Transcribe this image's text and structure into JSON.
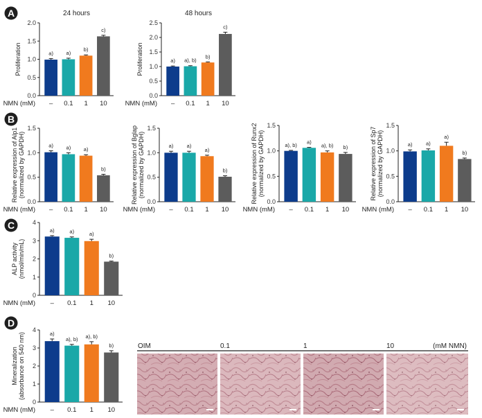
{
  "colors": {
    "bars": [
      "#0d3c8c",
      "#1aa8a8",
      "#f07a1e",
      "#5c5c5c"
    ],
    "badge": "#1f1f1f",
    "stain": "#c89aa2"
  },
  "xlabel": "NMN (mM)",
  "categories": [
    "–",
    "0.1",
    "1",
    "10"
  ],
  "panel_labels": [
    "A",
    "B",
    "C",
    "D"
  ],
  "images": {
    "labels": [
      "OIM",
      "0.1",
      "1",
      "10"
    ],
    "unit_label": "(mM NMN)"
  },
  "chart_data": [
    {
      "id": "A1",
      "type": "bar",
      "panel": "A",
      "title": "24 hours",
      "ylabel": [
        "Proliferation"
      ],
      "ylim": [
        0,
        2.0
      ],
      "yticks": [
        "0.0",
        "0.5",
        "1.0",
        "1.5",
        "2.0"
      ],
      "categories": [
        "–",
        "0.1",
        "1",
        "10"
      ],
      "values": [
        0.99,
        1.0,
        1.1,
        1.63
      ],
      "errors": [
        0.03,
        0.03,
        0.02,
        0.03
      ],
      "sig": [
        "a)",
        "a)",
        "b)",
        "c)"
      ]
    },
    {
      "id": "A2",
      "type": "bar",
      "panel": "A",
      "title": "48 hours",
      "ylabel": [
        "Proliferation"
      ],
      "ylim": [
        0,
        2.5
      ],
      "yticks": [
        "0.0",
        "0.5",
        "1.0",
        "1.5",
        "2.0",
        "2.5"
      ],
      "categories": [
        "–",
        "0.1",
        "1",
        "10"
      ],
      "values": [
        1.0,
        1.01,
        1.14,
        2.12
      ],
      "errors": [
        0.02,
        0.02,
        0.02,
        0.06
      ],
      "sig": [
        "a)",
        "a), b)",
        "b)",
        "c)"
      ]
    },
    {
      "id": "B1",
      "type": "bar",
      "panel": "B",
      "title": "",
      "ylabel": [
        "Relative expression of Alp1",
        "(normalized by GAPDH)"
      ],
      "ylim": [
        0,
        1.5
      ],
      "yticks": [
        "0.0",
        "0.5",
        "1.0",
        "1.5"
      ],
      "categories": [
        "–",
        "0.1",
        "1",
        "10"
      ],
      "values": [
        1.01,
        0.97,
        0.94,
        0.54
      ],
      "errors": [
        0.03,
        0.03,
        0.02,
        0.02
      ],
      "sig": [
        "a)",
        "a)",
        "a)",
        "b)"
      ]
    },
    {
      "id": "B2",
      "type": "bar",
      "panel": "B",
      "title": "",
      "ylabel": [
        "Relative expression of Bglap",
        "(normalized by GAPDH)"
      ],
      "ylim": [
        0,
        1.5
      ],
      "yticks": [
        "0.0",
        "0.5",
        "1.0",
        "1.5"
      ],
      "categories": [
        "–",
        "0.1",
        "1",
        "10"
      ],
      "values": [
        1.0,
        1.0,
        0.93,
        0.51
      ],
      "errors": [
        0.03,
        0.03,
        0.02,
        0.02
      ],
      "sig": [
        "a)",
        "a)",
        "a)",
        "b)"
      ]
    },
    {
      "id": "B3",
      "type": "bar",
      "panel": "B",
      "title": "",
      "ylabel": [
        "Relative expression of Runx2",
        "(normalized by GAPDH)"
      ],
      "ylim": [
        0,
        1.5
      ],
      "yticks": [
        "0.0",
        "0.5",
        "1.0",
        "1.5"
      ],
      "categories": [
        "–",
        "0.1",
        "1",
        "10"
      ],
      "values": [
        1.0,
        1.06,
        0.97,
        0.94
      ],
      "errors": [
        0.01,
        0.01,
        0.03,
        0.03
      ],
      "sig": [
        "a), b)",
        "a)",
        "a), b)",
        "b)"
      ]
    },
    {
      "id": "B4",
      "type": "bar",
      "panel": "B",
      "title": "",
      "ylabel": [
        "Relative expression of Sp7",
        "(normalized by GAPDH)"
      ],
      "ylim": [
        0,
        1.5
      ],
      "yticks": [
        "0.0",
        "0.5",
        "1.0",
        "1.5"
      ],
      "categories": [
        "–",
        "0.1",
        "1",
        "10"
      ],
      "values": [
        0.99,
        1.01,
        1.1,
        0.84
      ],
      "errors": [
        0.03,
        0.03,
        0.07,
        0.02
      ],
      "sig": [
        "a)",
        "a)",
        "a)",
        "b)"
      ]
    },
    {
      "id": "C1",
      "type": "bar",
      "panel": "C",
      "title": "",
      "ylabel": [
        "ALP activity",
        "(nmol/min/mL)"
      ],
      "ylim": [
        0,
        4
      ],
      "yticks": [
        "0",
        "1",
        "2",
        "3",
        "4"
      ],
      "categories": [
        "–",
        "0.1",
        "1",
        "10"
      ],
      "values": [
        3.23,
        3.16,
        2.98,
        1.85
      ],
      "errors": [
        0.05,
        0.05,
        0.1,
        0.03
      ],
      "sig": [
        "a)",
        "a)",
        "a)",
        "b)"
      ]
    },
    {
      "id": "D1",
      "type": "bar",
      "panel": "D",
      "title": "",
      "ylabel": [
        "Mineralization",
        "(absorbance on 540 nm)"
      ],
      "ylim": [
        0,
        4
      ],
      "yticks": [
        "0",
        "1",
        "2",
        "3",
        "4"
      ],
      "categories": [
        "–",
        "0.1",
        "1",
        "10"
      ],
      "values": [
        3.38,
        3.13,
        3.2,
        2.75
      ],
      "errors": [
        0.12,
        0.07,
        0.15,
        0.1
      ],
      "sig": [
        "a)",
        "a), b)",
        "a), b)",
        "b)"
      ]
    }
  ]
}
